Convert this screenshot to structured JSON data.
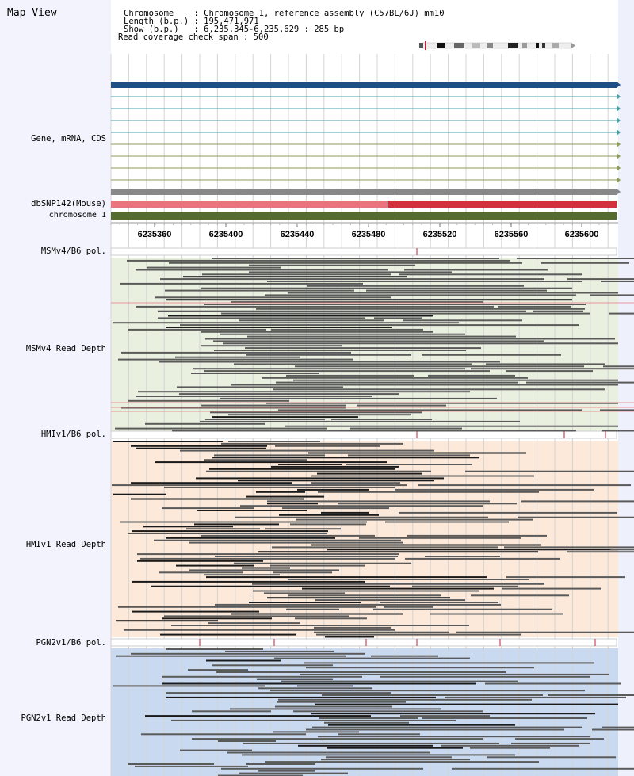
{
  "title": "Map View",
  "info": {
    "lines": [
      "Chromosome    : Chromosome 1, reference assembly (C57BL/6J) mm10",
      "Length (b.p.) : 195,471,971",
      "Show (b.p.)   : 6,235,345-6,235,629 : 285 bp",
      "Read coverage check span : 500"
    ]
  },
  "tracks": {
    "gene": "Gene, mRNA, CDS",
    "dbsnp": "dbSNP142(Mouse)",
    "chromosome": "chromosome 1",
    "msm_pol": "MSMv4/B6 pol.",
    "msm_depth": "MSMv4 Read Depth",
    "hmi_pol": "HMIv1/B6 pol.",
    "hmi_depth": "HMIv1 Read Depth",
    "pgn_pol": "PGN2v1/B6 pol.",
    "pgn_depth": "PGN2v1 Read Depth"
  },
  "ruler": {
    "ticks": [
      "6235360",
      "6235400",
      "6235440",
      "6235480",
      "6235520",
      "6235560",
      "6235600"
    ]
  },
  "colors": {
    "sidebar": "#f3f3fd",
    "gene_main": "#1f4e85",
    "gene_teal": "#4f9da4",
    "gene_olive": "#8f9b5a",
    "gene_gray": "#888888",
    "snp_light": "#e9747e",
    "snp_dark": "#d3303e",
    "chromosome": "#556b2f",
    "msm_bg": "#eaf0e0",
    "hmi_bg": "#fce9da",
    "pgn_bg": "#c9daf0",
    "read": "#5a5a5a",
    "read_dark": "#1a1a1a",
    "pol_mark": "#c0203a"
  }
}
